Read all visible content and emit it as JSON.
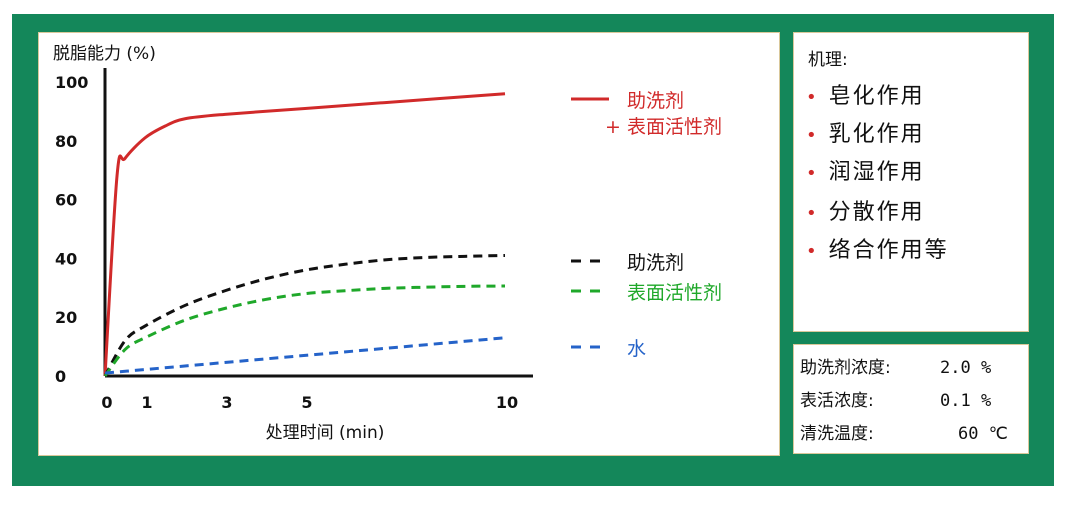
{
  "chart_data": {
    "type": "line",
    "ylabel": "脱脂能力 (%)",
    "xlabel": "处理时间 (min)",
    "xlim": [
      0,
      10
    ],
    "ylim": [
      0,
      100
    ],
    "x_ticks": [
      0,
      1,
      3,
      5,
      10
    ],
    "y_ticks": [
      0,
      20,
      40,
      60,
      80,
      100
    ],
    "grid": false,
    "legend_position": "right",
    "series": [
      {
        "name": "助洗剂",
        "name_line2": "+ 表面活性剂",
        "style": "solid",
        "color": "#d12a2a",
        "x": [
          0,
          0.3,
          0.5,
          1,
          1.5,
          2,
          3,
          5,
          7,
          10
        ],
        "y": [
          0,
          68,
          74,
          81,
          85,
          87.5,
          89,
          91,
          93,
          96
        ]
      },
      {
        "name": "助洗剂",
        "style": "dashed",
        "color": "#111111",
        "x": [
          0,
          0.5,
          1,
          2,
          3,
          4,
          5,
          6,
          7,
          8,
          9,
          10
        ],
        "y": [
          0,
          12,
          17,
          24,
          29,
          33,
          36,
          38,
          39.5,
          40.3,
          40.7,
          41
        ]
      },
      {
        "name": "表面活性剂",
        "style": "dashed",
        "color": "#1fa82a",
        "x": [
          0,
          0.5,
          1,
          2,
          3,
          4,
          5,
          6,
          7,
          8,
          9,
          10
        ],
        "y": [
          0,
          9,
          13,
          19,
          23,
          26,
          28,
          29,
          29.8,
          30.2,
          30.5,
          30.6
        ]
      },
      {
        "name": "水",
        "style": "dashed",
        "color": "#2563c9",
        "x": [
          0,
          10
        ],
        "y": [
          1,
          13
        ]
      }
    ]
  },
  "mechanism": {
    "title": "机理:",
    "items": [
      "皂化作用",
      "乳化作用",
      "润湿作用",
      "分散作用",
      "络合作用等"
    ]
  },
  "conditions": [
    {
      "label": "助洗剂浓度:",
      "value": "2.0 %"
    },
    {
      "label": "表活浓度:",
      "value": "0.1 %"
    },
    {
      "label": "清洗温度:",
      "value": "60 ℃"
    }
  ]
}
